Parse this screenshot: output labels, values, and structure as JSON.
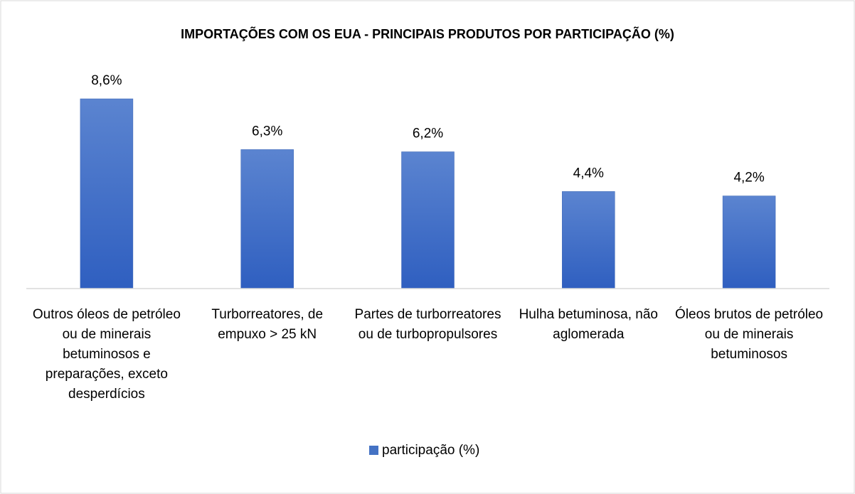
{
  "chart_data": {
    "type": "bar",
    "title": "IMPORTAÇÕES COM OS EUA - PRINCIPAIS PRODUTOS POR PARTICIPAÇÃO (%)",
    "categories": [
      "Outros óleos de petróleo ou de minerais betuminosos e preparações, exceto desperdícios",
      "Turborreatores, de empuxo > 25 kN",
      "Partes de turborreatores ou de turbopropulsores",
      "Hulha betuminosa, não aglomerada",
      "Óleos brutos de petróleo ou de minerais betuminosos"
    ],
    "series": [
      {
        "name": "participação (%)",
        "color": "#4472c4",
        "values": [
          8.6,
          6.3,
          6.2,
          4.4,
          4.2
        ],
        "value_labels": [
          "8,6%",
          "6,3%",
          "6,2%",
          "4,4%",
          "4,2%"
        ]
      }
    ],
    "legend": "bottom"
  }
}
